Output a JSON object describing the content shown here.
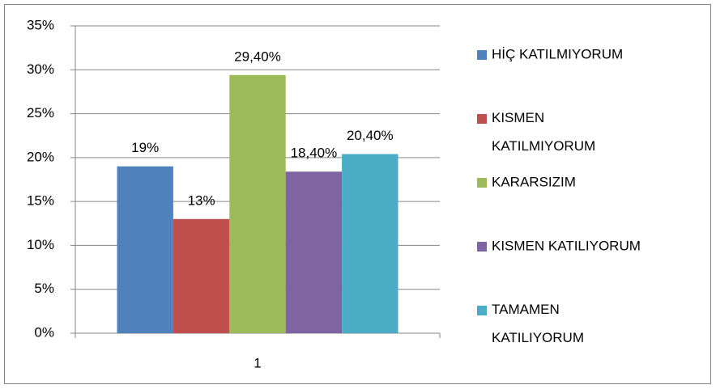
{
  "chart_data": {
    "type": "bar",
    "categories": [
      "1"
    ],
    "series": [
      {
        "name": "HİÇ KATILMIYORUM",
        "color": "#4f81bd",
        "values": [
          19
        ],
        "value_labels": [
          "19%"
        ]
      },
      {
        "name": "KISMEN KATILMIYORUM",
        "color": "#c0504d",
        "values": [
          13
        ],
        "value_labels": [
          "13%"
        ]
      },
      {
        "name": "KARARSIZIM",
        "color": "#9bbb59",
        "values": [
          29.4
        ],
        "value_labels": [
          "29,40%"
        ]
      },
      {
        "name": "KISMEN KATILIYORUM",
        "color": "#8064a2",
        "values": [
          18.4
        ],
        "value_labels": [
          "18,40%"
        ]
      },
      {
        "name": "TAMAMEN KATILIYORUM",
        "color": "#4bacc6",
        "values": [
          20.4
        ],
        "value_labels": [
          "20,40%"
        ]
      }
    ],
    "ylim": [
      0,
      35
    ],
    "yticks": [
      {
        "value": 0,
        "label": "0%"
      },
      {
        "value": 5,
        "label": "5%"
      },
      {
        "value": 10,
        "label": "10%"
      },
      {
        "value": 15,
        "label": "15%"
      },
      {
        "value": 20,
        "label": "20%"
      },
      {
        "value": 25,
        "label": "25%"
      },
      {
        "value": 30,
        "label": "30%"
      },
      {
        "value": 35,
        "label": "35%"
      }
    ],
    "grid": true,
    "legend": "right"
  }
}
